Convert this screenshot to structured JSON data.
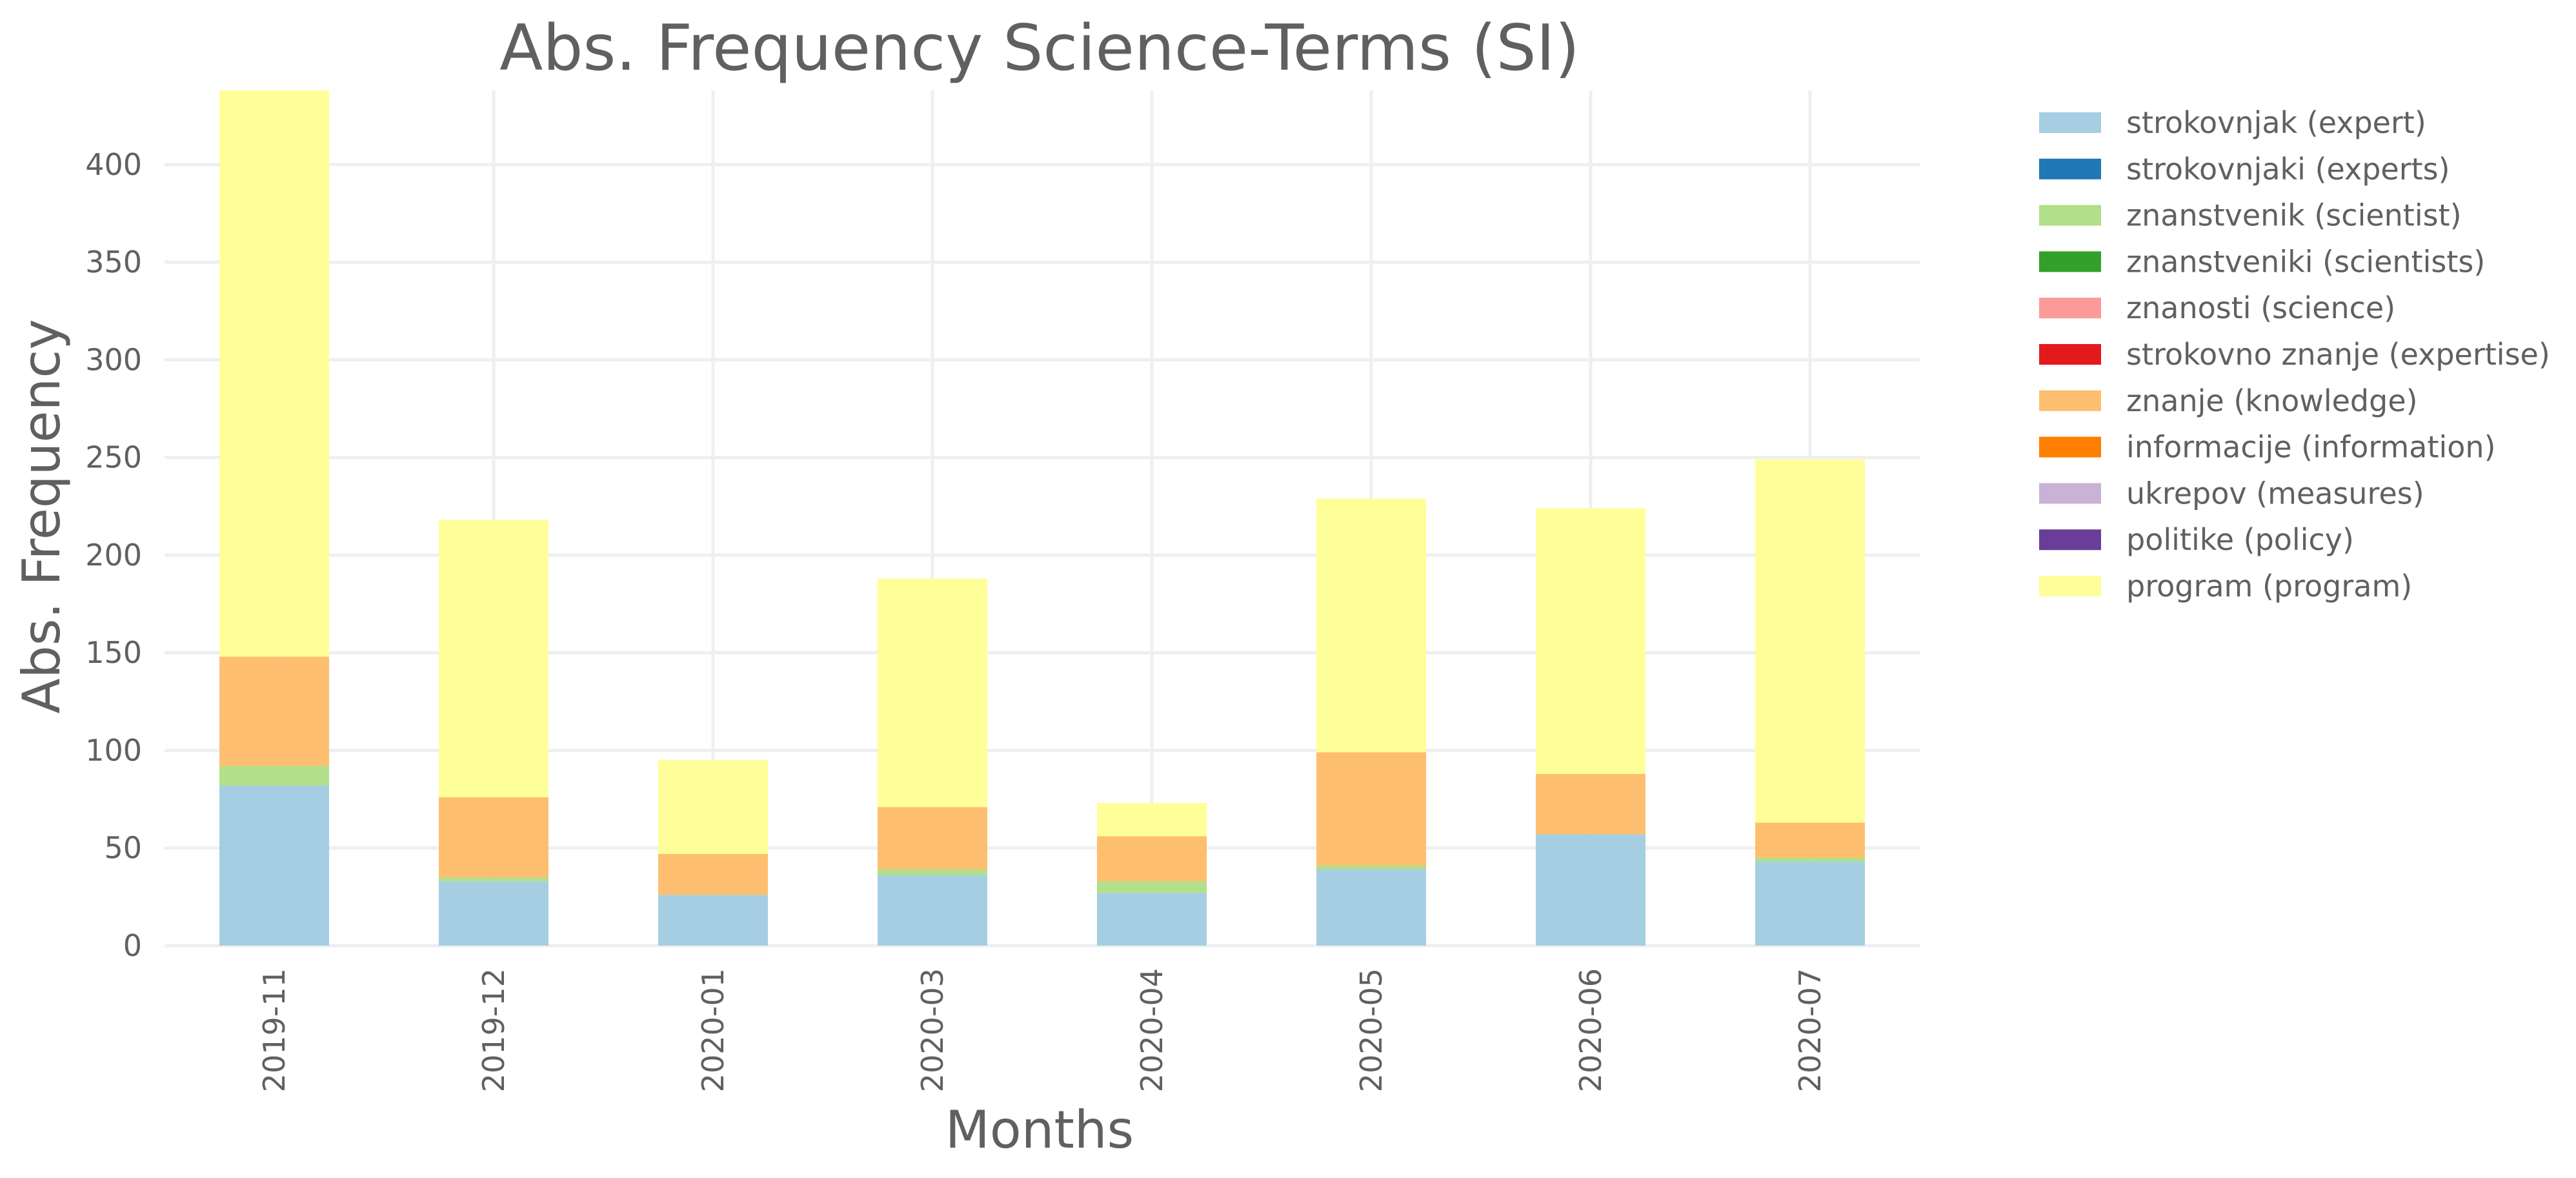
{
  "chart_data": {
    "type": "bar",
    "stacked": true,
    "title": "Abs. Frequency Science-Terms (SI)",
    "xlabel": "Months",
    "ylabel": "Abs. Frequency",
    "ylim": [
      0,
      438
    ],
    "yticks": [
      0,
      50,
      100,
      150,
      200,
      250,
      300,
      350,
      400
    ],
    "grid": true,
    "legend_position": "right, outside plot",
    "categories": [
      "2019-11",
      "2019-12",
      "2020-01",
      "2020-03",
      "2020-04",
      "2020-05",
      "2020-06",
      "2020-07"
    ],
    "series": [
      {
        "name": "strokovnjak (expert)",
        "color": "#a6cee3",
        "values": [
          82,
          33,
          26,
          36,
          27,
          39,
          57,
          43
        ]
      },
      {
        "name": "strokovnjaki (experts)",
        "color": "#1f78b4",
        "values": [
          0,
          0,
          0,
          0,
          0,
          0,
          0,
          0
        ]
      },
      {
        "name": "znanstvenik (scientist)",
        "color": "#b2df8a",
        "values": [
          10,
          2,
          0,
          3,
          6,
          2,
          0,
          2
        ]
      },
      {
        "name": "znanstveniki (scientists)",
        "color": "#33a02c",
        "values": [
          0,
          0,
          0,
          0,
          0,
          0,
          0,
          0
        ]
      },
      {
        "name": "znanosti (science)",
        "color": "#fb9a99",
        "values": [
          0,
          0,
          0,
          0,
          0,
          0,
          0,
          0
        ]
      },
      {
        "name": "strokovno znanje (expertise)",
        "color": "#e31a1c",
        "values": [
          0,
          0,
          0,
          0,
          0,
          0,
          0,
          0
        ]
      },
      {
        "name": "znanje (knowledge)",
        "color": "#fdbf6f",
        "values": [
          56,
          41,
          21,
          32,
          23,
          58,
          31,
          18
        ]
      },
      {
        "name": "informacije (information)",
        "color": "#ff7f00",
        "values": [
          0,
          0,
          0,
          0,
          0,
          0,
          0,
          0
        ]
      },
      {
        "name": "ukrepov (measures)",
        "color": "#cab2d6",
        "values": [
          0,
          0,
          0,
          0,
          0,
          0,
          0,
          0
        ]
      },
      {
        "name": "politike (policy)",
        "color": "#6a3d9a",
        "values": [
          0,
          0,
          0,
          0,
          0,
          0,
          0,
          0
        ]
      },
      {
        "name": "program (program)",
        "color": "#ffff99",
        "values": [
          290,
          142,
          48,
          117,
          17,
          130,
          136,
          186
        ]
      }
    ]
  }
}
